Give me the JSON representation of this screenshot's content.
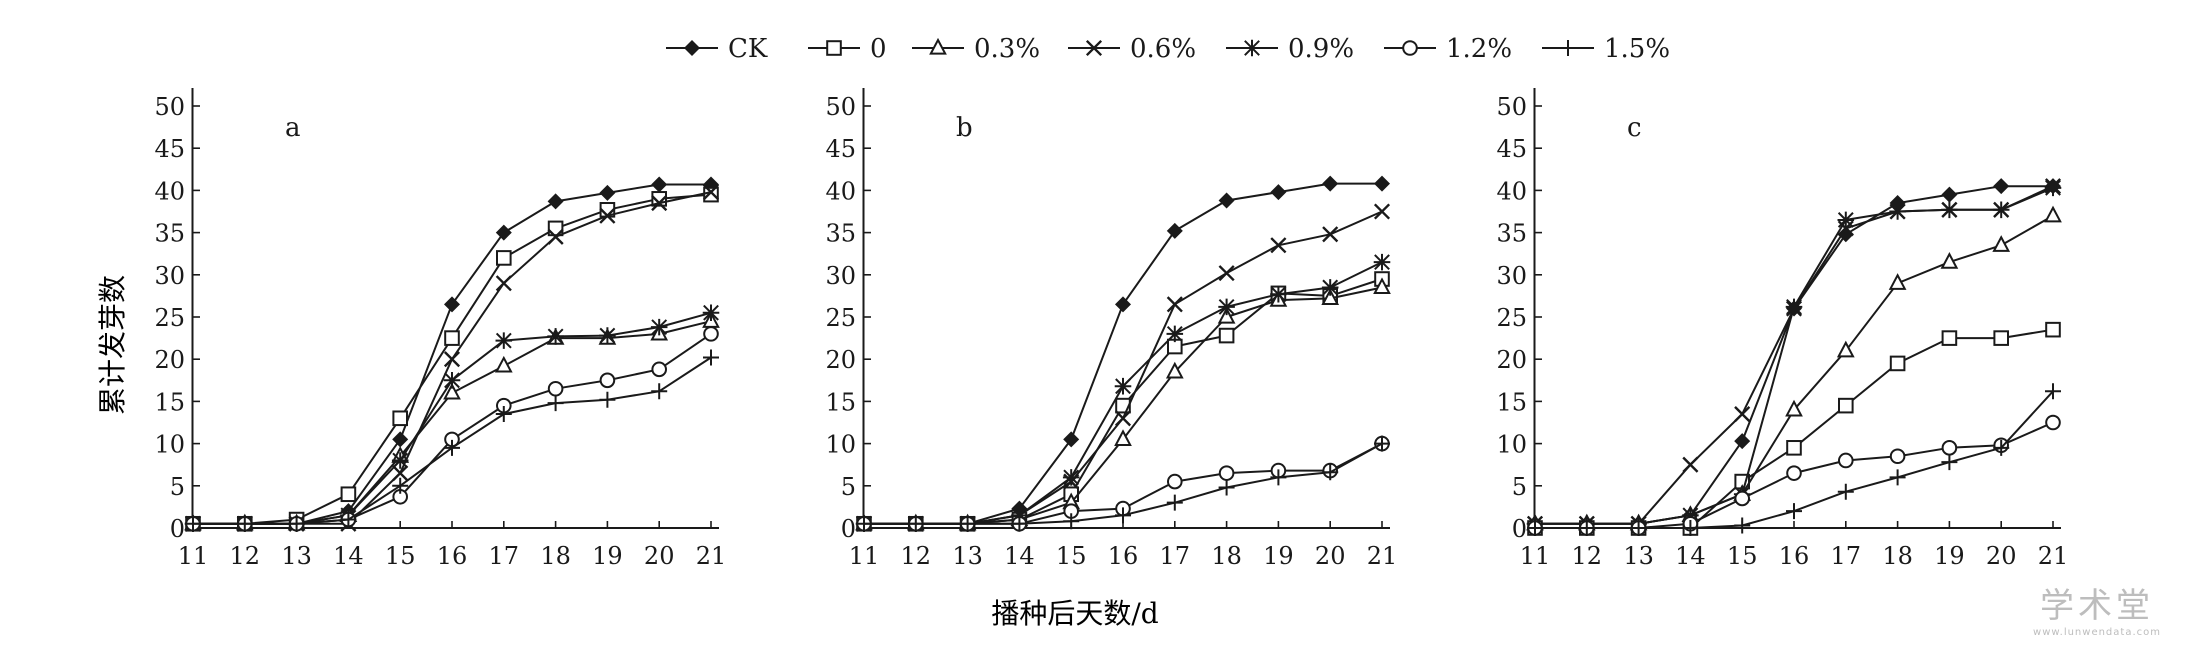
{
  "legend": [
    "CK",
    "0",
    "0.3%",
    "0.6%",
    "0.9%",
    "1.2%",
    "1.5%"
  ],
  "shared_ylabel": "累计发芽数",
  "shared_xlabel": "播种后天数/d",
  "watermark": {
    "main": "学术堂",
    "sub": "www.lunwendata.com"
  },
  "colors": {
    "ink": "#1a1a1a",
    "background": "#ffffff"
  },
  "chart_data": [
    {
      "type": "line",
      "panel_label": "a",
      "x": [
        11,
        12,
        13,
        14,
        15,
        16,
        17,
        18,
        19,
        20,
        21
      ],
      "xlim": [
        11,
        21
      ],
      "ylim": [
        0,
        50
      ],
      "yticks": [
        0,
        5,
        10,
        15,
        20,
        25,
        30,
        35,
        40,
        45,
        50
      ],
      "series": [
        {
          "name": "CK",
          "marker": "diamond",
          "values": [
            0.5,
            0.5,
            0.5,
            2,
            10.5,
            26.5,
            35,
            38.7,
            39.7,
            40.7,
            40.7
          ]
        },
        {
          "name": "0",
          "marker": "square",
          "values": [
            0.5,
            0.5,
            1,
            4,
            13,
            22.5,
            32,
            35.5,
            37.7,
            39,
            39.5
          ]
        },
        {
          "name": "0.3%",
          "marker": "triangle",
          "values": [
            0.5,
            0.5,
            0.5,
            1.5,
            8.5,
            16,
            19.2,
            22.5,
            22.5,
            23,
            24.5
          ]
        },
        {
          "name": "0.6%",
          "marker": "x",
          "values": [
            0.5,
            0.5,
            0.5,
            0.5,
            6.5,
            20,
            29,
            34.5,
            37,
            38.5,
            39.8
          ]
        },
        {
          "name": "0.9%",
          "marker": "asterisk",
          "values": [
            0.5,
            0.5,
            0.5,
            1.5,
            8,
            17.5,
            22.2,
            22.7,
            22.8,
            23.8,
            25.5
          ]
        },
        {
          "name": "1.2%",
          "marker": "circle",
          "values": [
            0.5,
            0.5,
            0.5,
            1,
            3.7,
            10.5,
            14.5,
            16.5,
            17.5,
            18.8,
            23
          ]
        },
        {
          "name": "1.5%",
          "marker": "plus",
          "values": [
            0.5,
            0.5,
            0.5,
            1,
            5,
            9.5,
            13.5,
            14.8,
            15.2,
            16.2,
            20.2
          ]
        }
      ]
    },
    {
      "type": "line",
      "panel_label": "b",
      "x": [
        11,
        12,
        13,
        14,
        15,
        16,
        17,
        18,
        19,
        20,
        21
      ],
      "xlim": [
        11,
        21
      ],
      "ylim": [
        0,
        50
      ],
      "yticks": [
        0,
        5,
        10,
        15,
        20,
        25,
        30,
        35,
        40,
        45,
        50
      ],
      "series": [
        {
          "name": "CK",
          "marker": "diamond",
          "values": [
            0.5,
            0.5,
            0.5,
            2.3,
            10.5,
            26.5,
            35.2,
            38.8,
            39.8,
            40.8,
            40.8
          ]
        },
        {
          "name": "0",
          "marker": "square",
          "values": [
            0.5,
            0.5,
            0.5,
            1,
            4,
            14.5,
            21.5,
            22.8,
            27.8,
            27.5,
            29.5
          ]
        },
        {
          "name": "0.3%",
          "marker": "triangle",
          "values": [
            0.5,
            0.5,
            0.5,
            1,
            3,
            10.5,
            18.5,
            25,
            27,
            27.2,
            28.5
          ]
        },
        {
          "name": "0.6%",
          "marker": "x",
          "values": [
            0.5,
            0.5,
            0.5,
            1.5,
            5.5,
            13,
            26.5,
            30.2,
            33.5,
            34.8,
            37.5
          ]
        },
        {
          "name": "0.9%",
          "marker": "asterisk",
          "values": [
            0.5,
            0.5,
            0.5,
            1.5,
            6,
            16.8,
            23,
            26.2,
            27.7,
            28.5,
            31.5
          ]
        },
        {
          "name": "1.2%",
          "marker": "circle",
          "values": [
            0.5,
            0.5,
            0.5,
            0.5,
            2,
            2.3,
            5.5,
            6.5,
            6.8,
            6.8,
            10
          ]
        },
        {
          "name": "1.5%",
          "marker": "plus",
          "values": [
            0.5,
            0.5,
            0.5,
            0.5,
            0.8,
            1.5,
            3,
            4.8,
            6,
            6.6,
            10
          ]
        }
      ]
    },
    {
      "type": "line",
      "panel_label": "c",
      "x": [
        11,
        12,
        13,
        14,
        15,
        16,
        17,
        18,
        19,
        20,
        21
      ],
      "xlim": [
        11,
        21
      ],
      "ylim": [
        0,
        50
      ],
      "yticks": [
        0,
        5,
        10,
        15,
        20,
        25,
        30,
        35,
        40,
        45,
        50
      ],
      "series": [
        {
          "name": "CK",
          "marker": "diamond",
          "values": [
            0.5,
            0.5,
            0.5,
            1.5,
            10.3,
            26,
            34.8,
            38.5,
            39.5,
            40.5,
            40.5
          ]
        },
        {
          "name": "0",
          "marker": "square",
          "values": [
            0,
            0,
            0,
            0,
            5.5,
            9.5,
            14.5,
            19.5,
            22.5,
            22.5,
            23.5
          ]
        },
        {
          "name": "0.3%",
          "marker": "triangle",
          "values": [
            0.5,
            0.5,
            0.5,
            1.5,
            4,
            14,
            21,
            29,
            31.5,
            33.5,
            37
          ]
        },
        {
          "name": "0.6%",
          "marker": "x",
          "values": [
            0.5,
            0.5,
            0.5,
            7.5,
            13.5,
            26,
            35.5,
            37.5,
            37.7,
            37.7,
            40.5
          ]
        },
        {
          "name": "0.9%",
          "marker": "asterisk",
          "values": [
            0.5,
            0.5,
            0.5,
            1.5,
            4,
            26.2,
            36.5,
            37.5,
            37.7,
            37.7,
            40.3
          ]
        },
        {
          "name": "1.2%",
          "marker": "circle",
          "values": [
            0,
            0,
            0,
            0.5,
            3.5,
            6.5,
            8,
            8.5,
            9.5,
            9.8,
            12.5
          ]
        },
        {
          "name": "1.5%",
          "marker": "plus",
          "values": [
            0,
            0,
            0,
            0,
            0.3,
            2,
            4.3,
            6,
            7.8,
            9.5,
            16.2
          ]
        }
      ]
    }
  ]
}
